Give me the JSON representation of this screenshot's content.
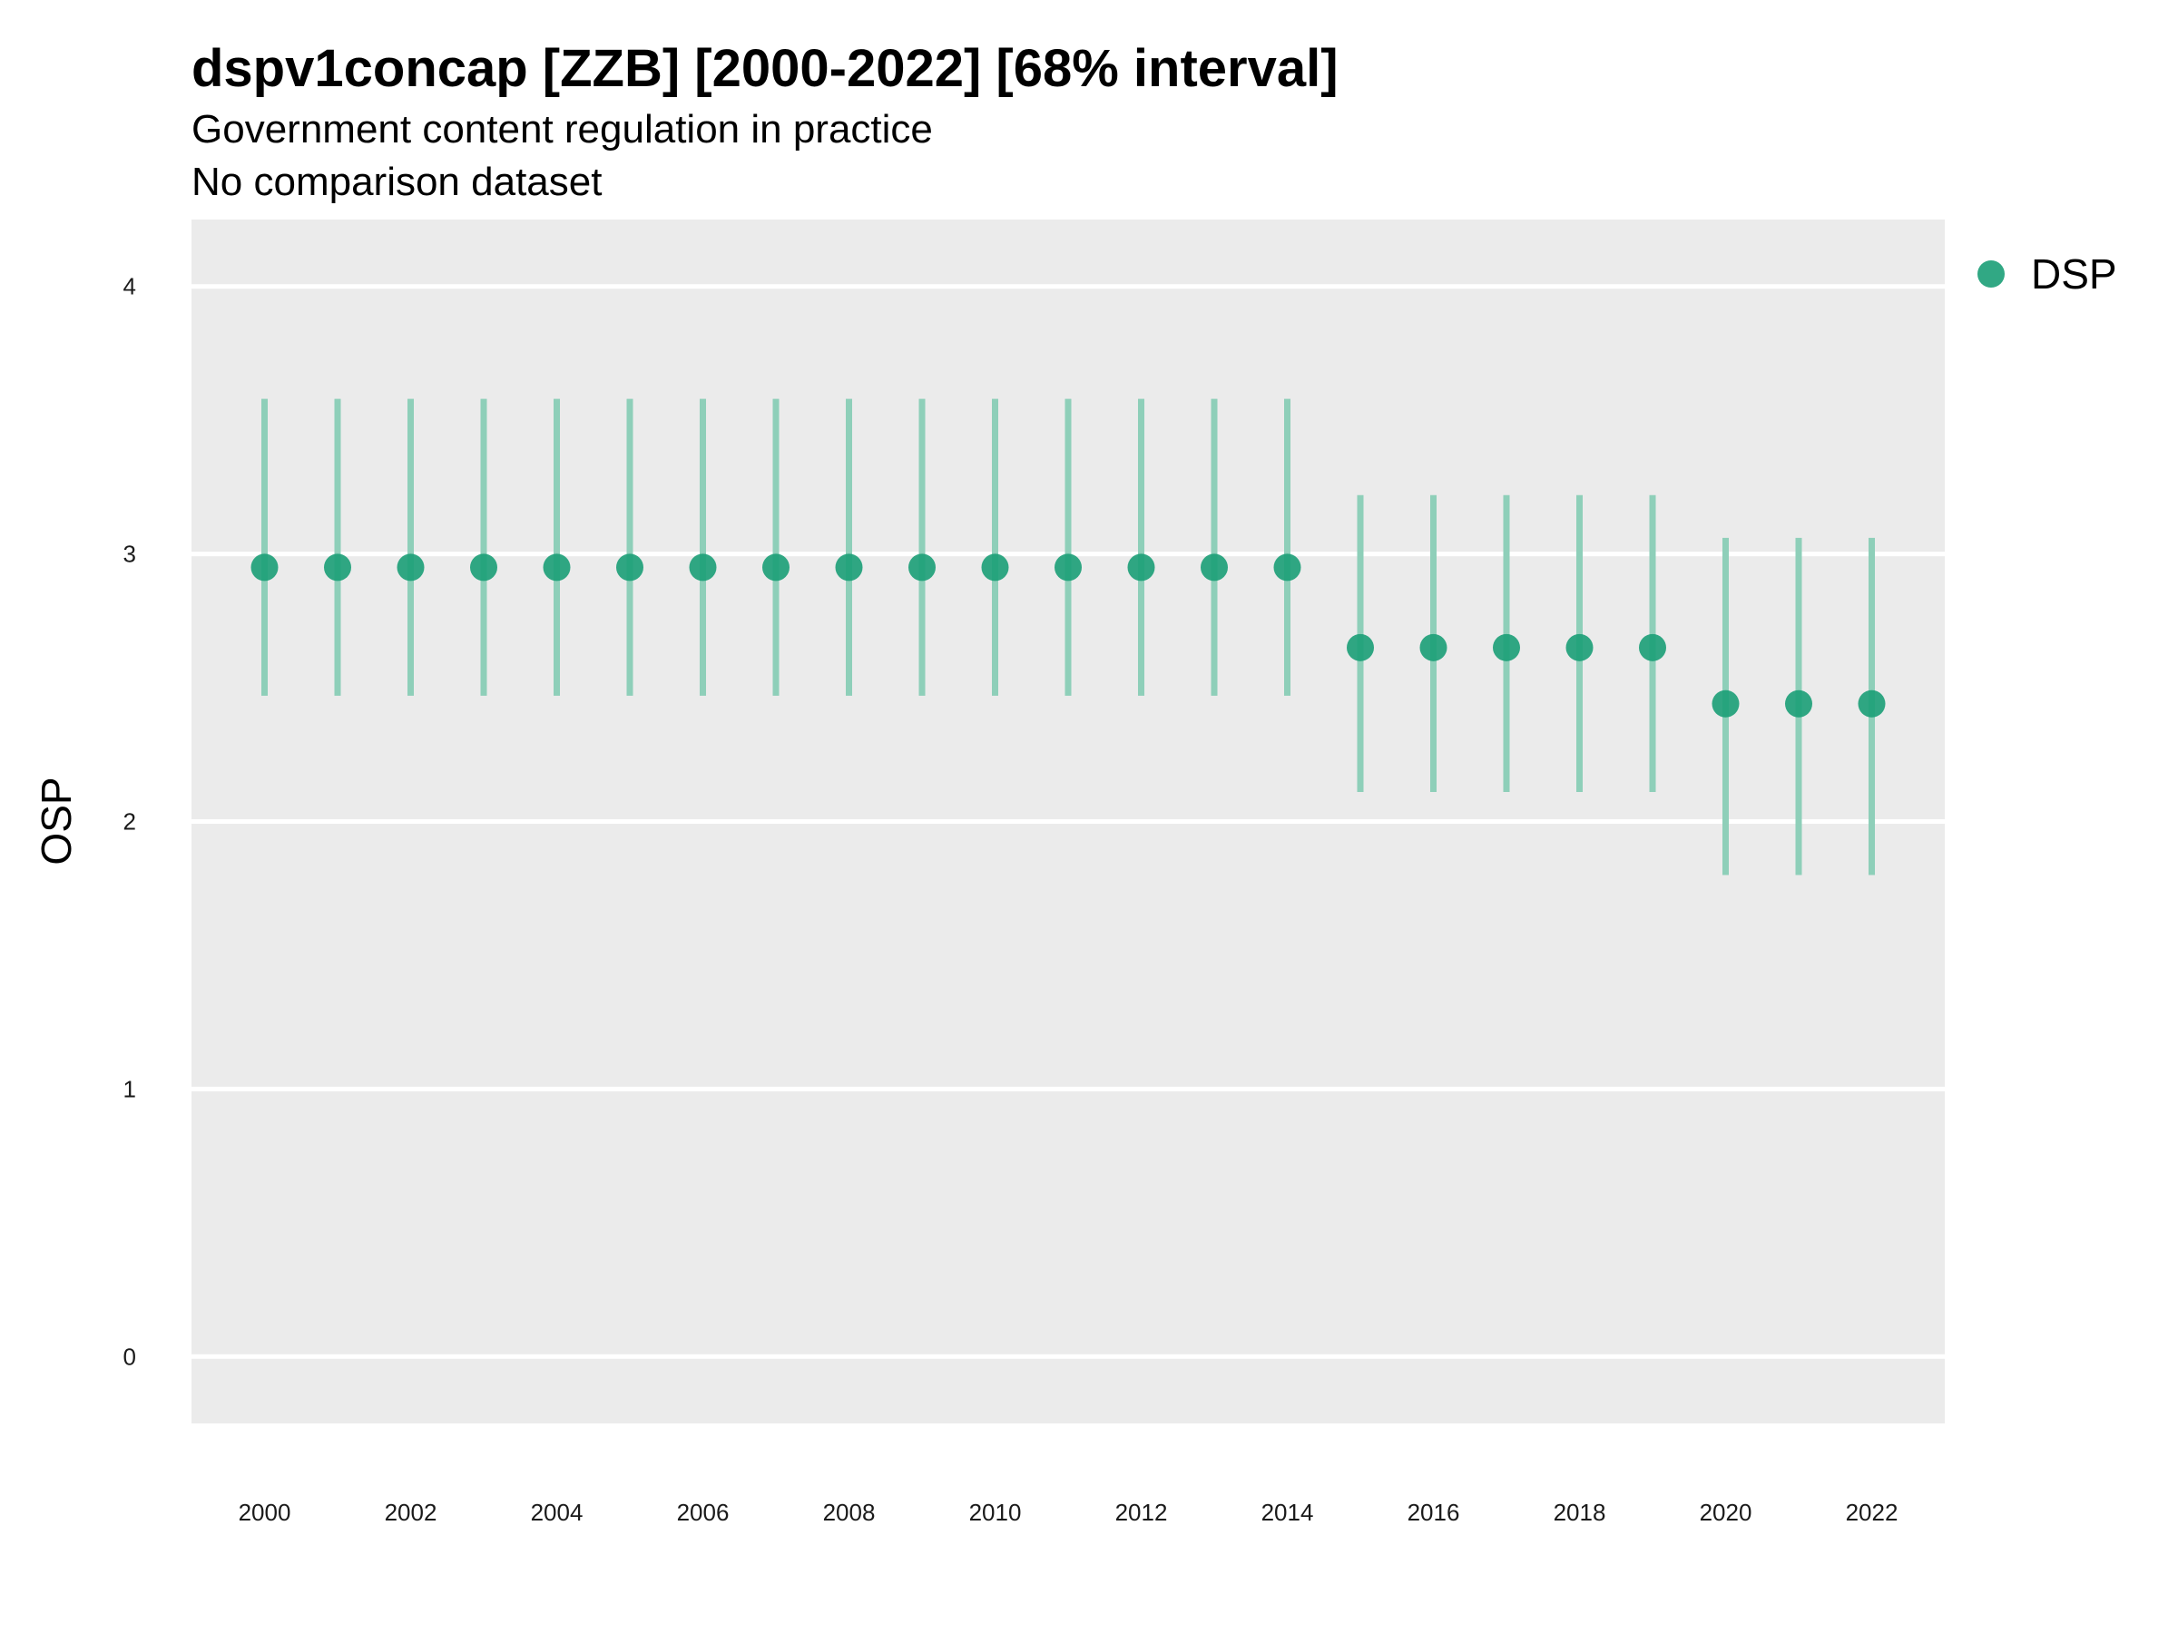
{
  "chart_data": {
    "type": "scatter",
    "title": "dspv1concap [ZZB] [2000-2022] [68% interval]",
    "subtitle": "Government content regulation in practice",
    "subtitle2": "No comparison dataset",
    "xlabel": "",
    "ylabel": "OSP",
    "xlim": [
      1999,
      2023
    ],
    "ylim": [
      -0.25,
      4.25
    ],
    "grid": true,
    "legend_position": "right",
    "x_ticks": [
      2000,
      2002,
      2004,
      2006,
      2008,
      2010,
      2012,
      2014,
      2016,
      2018,
      2020,
      2022
    ],
    "y_ticks": [
      0,
      1,
      2,
      3,
      4
    ],
    "colors": {
      "panel_background": "#ebebeb",
      "gridline": "#ffffff",
      "point": "#1b9e77",
      "interval": "#8ecfb9"
    },
    "series": [
      {
        "name": "DSP",
        "x": [
          2000,
          2001,
          2002,
          2003,
          2004,
          2005,
          2006,
          2007,
          2008,
          2009,
          2010,
          2011,
          2012,
          2013,
          2014,
          2015,
          2016,
          2017,
          2018,
          2019,
          2020,
          2021,
          2022
        ],
        "y": [
          2.95,
          2.95,
          2.95,
          2.95,
          2.95,
          2.95,
          2.95,
          2.95,
          2.95,
          2.95,
          2.95,
          2.95,
          2.95,
          2.95,
          2.95,
          2.65,
          2.65,
          2.65,
          2.65,
          2.65,
          2.44,
          2.44,
          2.44
        ],
        "lower": [
          2.47,
          2.47,
          2.47,
          2.47,
          2.47,
          2.47,
          2.47,
          2.47,
          2.47,
          2.47,
          2.47,
          2.47,
          2.47,
          2.47,
          2.47,
          2.11,
          2.11,
          2.11,
          2.11,
          2.11,
          1.8,
          1.8,
          1.8
        ],
        "upper": [
          3.58,
          3.58,
          3.58,
          3.58,
          3.58,
          3.58,
          3.58,
          3.58,
          3.58,
          3.58,
          3.58,
          3.58,
          3.58,
          3.58,
          3.58,
          3.22,
          3.22,
          3.22,
          3.22,
          3.22,
          3.06,
          3.06,
          3.06
        ]
      }
    ]
  }
}
